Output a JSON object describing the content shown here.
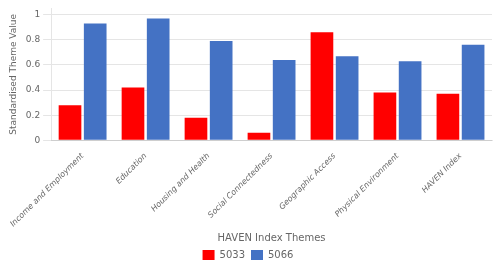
{
  "chart_data": {
    "type": "bar",
    "xlabel": "HAVEN Index Themes",
    "ylabel": "Standardised Theme Value",
    "categories": [
      "Income and Employment",
      "Education",
      "Housing and Health",
      "Social Connectedness",
      "Geographic Access",
      "Physical Environment",
      "HAVEN Index"
    ],
    "series": [
      {
        "name": "5033",
        "color": "#FF0000",
        "values": [
          0.28,
          0.42,
          0.18,
          0.06,
          0.86,
          0.38,
          0.37
        ]
      },
      {
        "name": "5066",
        "color": "#4472C4",
        "values": [
          0.93,
          0.97,
          0.79,
          0.64,
          0.67,
          0.63,
          0.76
        ]
      }
    ],
    "ylim": [
      0,
      1.05
    ],
    "yticks": [
      0,
      0.2,
      0.4,
      0.6,
      0.8,
      1
    ],
    "grid": true,
    "legend": "bottom"
  }
}
